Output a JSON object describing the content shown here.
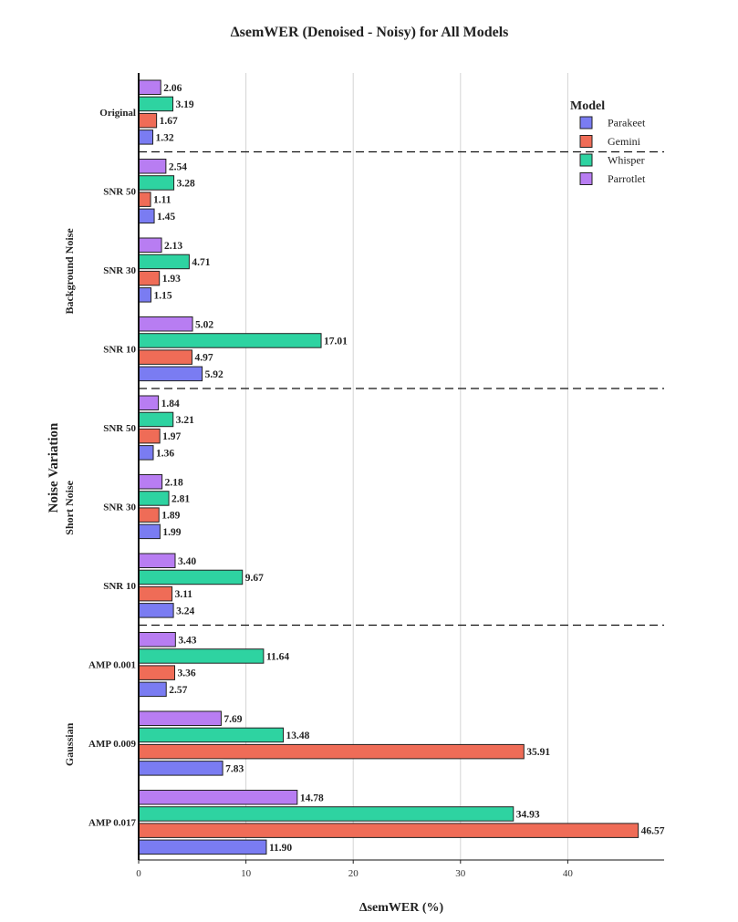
{
  "chart_data": {
    "type": "bar",
    "orientation": "horizontal",
    "title": "ΔsemWER (Denoised - Noisy) for All Models",
    "xlabel": "ΔsemWER (%)",
    "ylabel": "Noise Variation",
    "xlim": [
      0,
      48
    ],
    "xticks": [
      0,
      10,
      20,
      30,
      40
    ],
    "grid": true,
    "legend": {
      "title": "Model",
      "placement": "top-right"
    },
    "series": [
      {
        "name": "Parakeet",
        "color": "#7a7cf2"
      },
      {
        "name": "Gemini",
        "color": "#ef6c57"
      },
      {
        "name": "Whisper",
        "color": "#2ed3a1"
      },
      {
        "name": "Parrotlet",
        "color": "#b87df2"
      }
    ],
    "groups": [
      {
        "name": "",
        "categories": [
          {
            "label": "Original",
            "values": {
              "Parakeet": 1.32,
              "Gemini": 1.67,
              "Whisper": 3.19,
              "Parrotlet": 2.06
            }
          }
        ]
      },
      {
        "name": "Background Noise",
        "categories": [
          {
            "label": "SNR 50",
            "values": {
              "Parakeet": 1.45,
              "Gemini": 1.11,
              "Whisper": 3.28,
              "Parrotlet": 2.54
            }
          },
          {
            "label": "SNR 30",
            "values": {
              "Parakeet": 1.15,
              "Gemini": 1.93,
              "Whisper": 4.71,
              "Parrotlet": 2.13
            }
          },
          {
            "label": "SNR 10",
            "values": {
              "Parakeet": 5.92,
              "Gemini": 4.97,
              "Whisper": 17.01,
              "Parrotlet": 5.02
            }
          }
        ]
      },
      {
        "name": "Short Noise",
        "categories": [
          {
            "label": "SNR 50",
            "values": {
              "Parakeet": 1.36,
              "Gemini": 1.97,
              "Whisper": 3.21,
              "Parrotlet": 1.84
            }
          },
          {
            "label": "SNR 30",
            "values": {
              "Parakeet": 1.99,
              "Gemini": 1.89,
              "Whisper": 2.81,
              "Parrotlet": 2.18
            }
          },
          {
            "label": "SNR 10",
            "values": {
              "Parakeet": 3.24,
              "Gemini": 3.11,
              "Whisper": 9.67,
              "Parrotlet": 3.4
            }
          }
        ]
      },
      {
        "name": "Gaussian",
        "categories": [
          {
            "label": "AMP 0.001",
            "values": {
              "Parakeet": 2.57,
              "Gemini": 3.36,
              "Whisper": 11.64,
              "Parrotlet": 3.43
            }
          },
          {
            "label": "AMP 0.009",
            "values": {
              "Parakeet": 7.83,
              "Gemini": 35.91,
              "Whisper": 13.48,
              "Parrotlet": 7.69
            }
          },
          {
            "label": "AMP 0.017",
            "values": {
              "Parakeet": 11.9,
              "Gemini": 46.57,
              "Whisper": 34.93,
              "Parrotlet": 14.78
            }
          }
        ]
      }
    ]
  }
}
